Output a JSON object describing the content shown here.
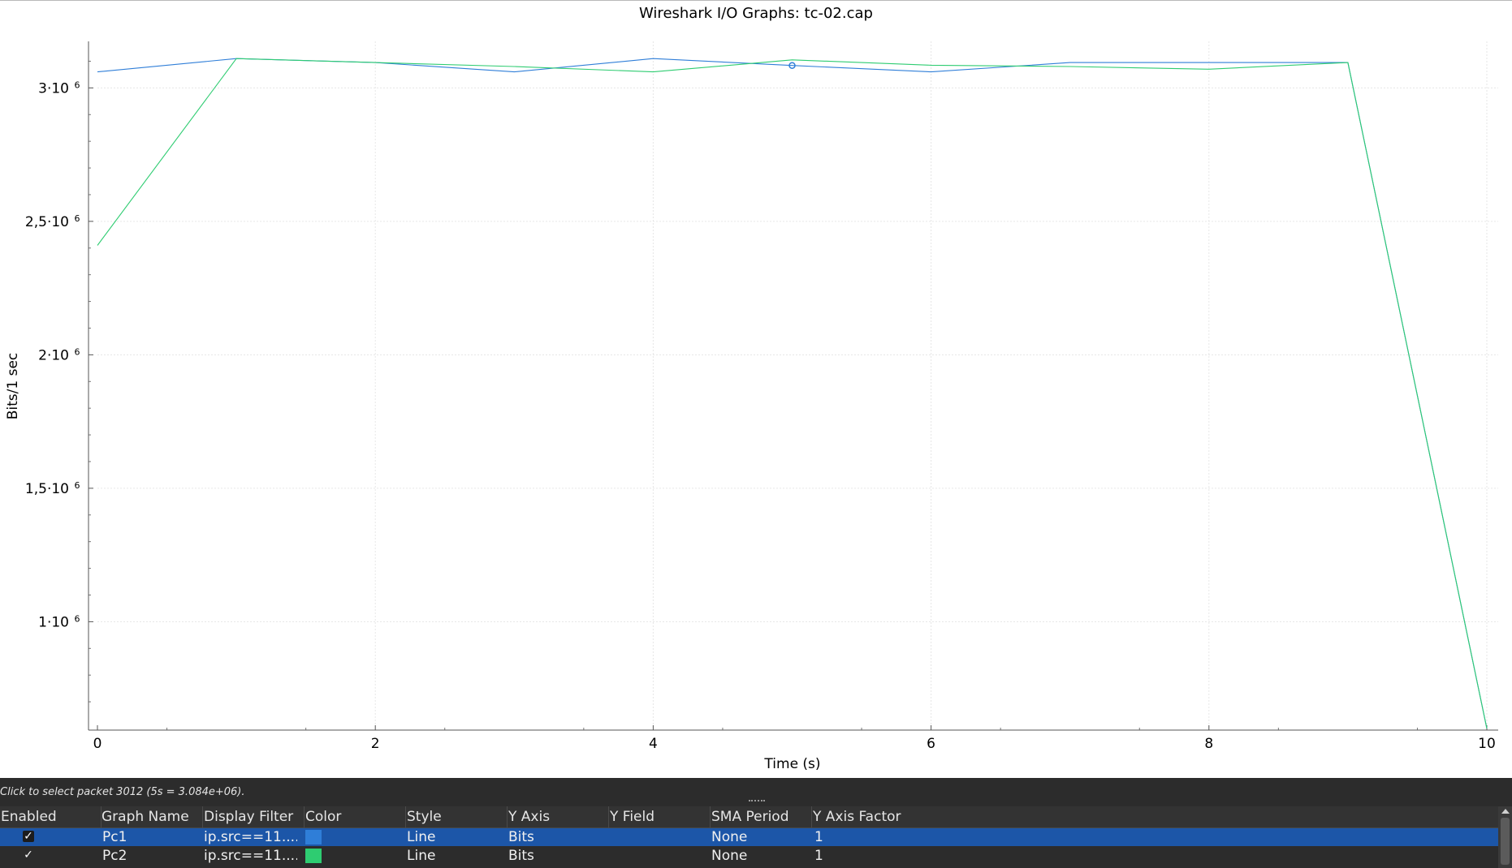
{
  "window": {
    "title": "Wireshark I/O Graphs: tc-02.cap"
  },
  "plot": {
    "ylabel": "Bits/1 sec",
    "xlabel": "Time (s)",
    "y_ticks": [
      {
        "mant": "3·10",
        "exp": "6",
        "value": 3000000
      },
      {
        "mant": "2,5·10",
        "exp": "6",
        "value": 2500000
      },
      {
        "mant": "2·10",
        "exp": "6",
        "value": 2000000
      },
      {
        "mant": "1,5·10",
        "exp": "6",
        "value": 1500000
      },
      {
        "mant": "1·10",
        "exp": "6",
        "value": 1000000
      }
    ],
    "x_ticks": [
      "0",
      "2",
      "4",
      "6",
      "8",
      "10"
    ]
  },
  "chart_data": {
    "type": "line",
    "title": "Wireshark I/O Graphs: tc-02.cap",
    "xlabel": "Time (s)",
    "ylabel": "Bits/1 sec",
    "xlim": [
      0,
      10
    ],
    "ylim": [
      600000,
      3150000
    ],
    "grid": true,
    "series": [
      {
        "name": "Pc1",
        "color": "#2f7ed8",
        "x": [
          0,
          1,
          2,
          3,
          4,
          5,
          6,
          7,
          8,
          9,
          10
        ],
        "values": [
          3060000,
          3110000,
          3095000,
          3060000,
          3110000,
          3084000,
          3060000,
          3095000,
          3095000,
          3095000,
          600000
        ]
      },
      {
        "name": "Pc2",
        "color": "#2ecc71",
        "x": [
          0,
          1,
          2,
          3,
          4,
          5,
          6,
          7,
          8,
          9,
          10
        ],
        "values": [
          2410000,
          3110000,
          3095000,
          3080000,
          3060000,
          3105000,
          3085000,
          3080000,
          3070000,
          3095000,
          600000
        ]
      }
    ],
    "highlight": {
      "x": 5,
      "y": 3084000
    }
  },
  "status": {
    "hint": "Click to select packet 3012 (5s = 3.084e+06)."
  },
  "table": {
    "headers": [
      "Enabled",
      "Graph Name",
      "Display Filter",
      "Color",
      "Style",
      "Y Axis",
      "Y Field",
      "SMA Period",
      "Y Axis Factor"
    ],
    "rows": [
      {
        "enabled": "✓",
        "name": "Pc1",
        "filter": "ip.src==11....",
        "color": "#2f7ed8",
        "style": "Line",
        "yaxis": "Bits",
        "yfield": "",
        "sma": "None",
        "factor": "1"
      },
      {
        "enabled": "✓",
        "name": "Pc2",
        "filter": "ip.src==11....",
        "color": "#2ecc71",
        "style": "Line",
        "yaxis": "Bits",
        "yfield": "",
        "sma": "None",
        "factor": "1"
      }
    ]
  }
}
